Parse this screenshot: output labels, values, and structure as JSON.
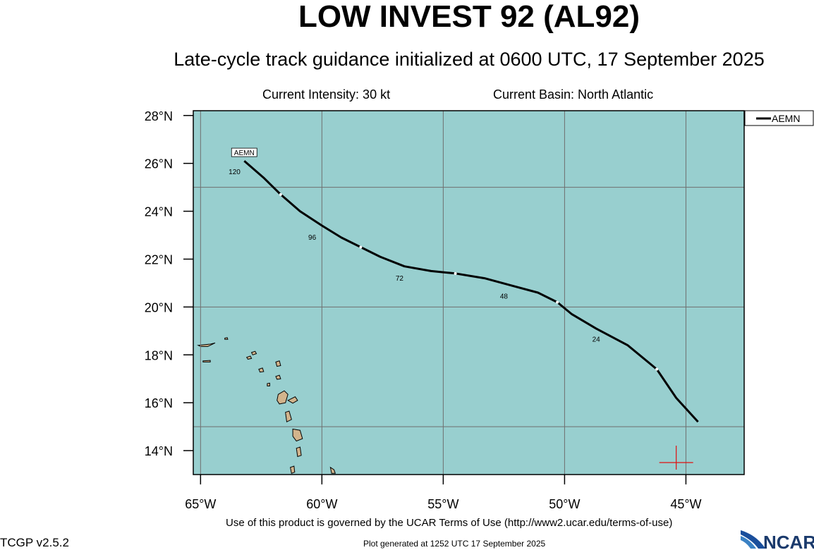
{
  "header": {
    "title": "LOW INVEST 92 (AL92)",
    "subtitle": "Late-cycle track guidance initialized at 0600 UTC, 17 September 2025",
    "intensity": "Current Intensity: 30 kt",
    "basin": "Current Basin: North Atlantic"
  },
  "footer": {
    "terms": "Use of this product is governed by the UCAR Terms of Use (http://www2.ucar.edu/terms-of-use)",
    "generated": "Plot generated at 1252 UTC   17 September 2025",
    "version": "TCGP v2.5.2",
    "logo": "NCAR"
  },
  "map": {
    "lon_range": [
      -65.3,
      -42.6
    ],
    "lat_range": [
      13.0,
      28.2
    ],
    "ocean_color": "#98cfcf",
    "land_color": "#d2b48c",
    "grid_color": "#6f6f6f",
    "track_color": "#000000",
    "lon_ticks": [
      {
        "lon": -65,
        "label": "65°W"
      },
      {
        "lon": -60,
        "label": "60°W"
      },
      {
        "lon": -55,
        "label": "55°W"
      },
      {
        "lon": -50,
        "label": "50°W"
      },
      {
        "lon": -45,
        "label": "45°W"
      }
    ],
    "lat_ticks": [
      {
        "lat": 28,
        "label": "28°N"
      },
      {
        "lat": 26,
        "label": "26°N"
      },
      {
        "lat": 24,
        "label": "24°N"
      },
      {
        "lat": 22,
        "label": "22°N"
      },
      {
        "lat": 20,
        "label": "20°N"
      },
      {
        "lat": 18,
        "label": "18°N"
      },
      {
        "lat": 16,
        "label": "16°N"
      },
      {
        "lat": 14,
        "label": "14°N"
      }
    ],
    "grid_lons": [
      -65,
      -60,
      -55,
      -50,
      -45
    ],
    "grid_lats": [
      25,
      20,
      15
    ],
    "current_position": {
      "lon": -45.4,
      "lat": 13.5
    },
    "tracks": [
      {
        "name": "AEMN",
        "points": [
          {
            "lon": -44.5,
            "lat": 15.2
          },
          {
            "lon": -45.4,
            "lat": 16.2
          },
          {
            "lon": -46.2,
            "lat": 17.4
          },
          {
            "lon": -47.4,
            "lat": 18.4
          },
          {
            "lon": -48.7,
            "lat": 19.1
          },
          {
            "lon": -49.7,
            "lat": 19.7
          },
          {
            "lon": -50.3,
            "lat": 20.2
          },
          {
            "lon": -51.1,
            "lat": 20.6
          },
          {
            "lon": -52.2,
            "lat": 20.9
          },
          {
            "lon": -53.3,
            "lat": 21.2
          },
          {
            "lon": -54.5,
            "lat": 21.4
          },
          {
            "lon": -55.5,
            "lat": 21.5
          },
          {
            "lon": -56.6,
            "lat": 21.7
          },
          {
            "lon": -57.6,
            "lat": 22.1
          },
          {
            "lon": -58.4,
            "lat": 22.5
          },
          {
            "lon": -59.2,
            "lat": 22.9
          },
          {
            "lon": -60.0,
            "lat": 23.4
          },
          {
            "lon": -60.9,
            "lat": 24.0
          },
          {
            "lon": -61.7,
            "lat": 24.7
          },
          {
            "lon": -62.4,
            "lat": 25.4
          },
          {
            "lon": -63.2,
            "lat": 26.1
          }
        ],
        "markers": [
          {
            "lon": -46.2,
            "lat": 17.4
          },
          {
            "lon": -50.3,
            "lat": 20.2
          },
          {
            "lon": -54.5,
            "lat": 21.4
          },
          {
            "lon": -58.4,
            "lat": 22.5
          },
          {
            "lon": -61.7,
            "lat": 24.7
          }
        ],
        "labels": [
          {
            "text": "24",
            "lon": -48.7,
            "lat": 18.85
          },
          {
            "text": "48",
            "lon": -52.5,
            "lat": 20.65
          },
          {
            "text": "72",
            "lon": -56.8,
            "lat": 21.4
          },
          {
            "text": "96",
            "lon": -60.4,
            "lat": 23.1
          },
          {
            "text": "120",
            "lon": -63.6,
            "lat": 25.85
          }
        ],
        "box_label": {
          "text": "AEMN",
          "lon": -63.2,
          "lat": 26.4
        }
      }
    ],
    "legend": {
      "entries": [
        "AEMN"
      ]
    },
    "islands": [
      [
        [
          -65.1,
          18.4
        ],
        [
          -64.6,
          18.45
        ],
        [
          -64.4,
          18.5
        ],
        [
          -64.7,
          18.35
        ],
        [
          -65.0,
          18.35
        ]
      ],
      [
        [
          -64.0,
          18.7
        ],
        [
          -63.9,
          18.72
        ],
        [
          -63.88,
          18.65
        ],
        [
          -64.0,
          18.65
        ]
      ],
      [
        [
          -64.9,
          17.75
        ],
        [
          -64.6,
          17.77
        ],
        [
          -64.6,
          17.7
        ],
        [
          -64.9,
          17.7
        ]
      ],
      [
        [
          -62.9,
          18.1
        ],
        [
          -62.75,
          18.15
        ],
        [
          -62.7,
          18.05
        ],
        [
          -62.85,
          18.0
        ]
      ],
      [
        [
          -63.1,
          17.9
        ],
        [
          -62.95,
          17.95
        ],
        [
          -62.9,
          17.85
        ],
        [
          -63.05,
          17.82
        ]
      ],
      [
        [
          -62.6,
          17.4
        ],
        [
          -62.45,
          17.45
        ],
        [
          -62.4,
          17.3
        ],
        [
          -62.55,
          17.28
        ]
      ],
      [
        [
          -61.9,
          17.7
        ],
        [
          -61.75,
          17.75
        ],
        [
          -61.7,
          17.55
        ],
        [
          -61.85,
          17.52
        ]
      ],
      [
        [
          -61.9,
          17.1
        ],
        [
          -61.75,
          17.15
        ],
        [
          -61.7,
          17.0
        ],
        [
          -61.85,
          16.98
        ]
      ],
      [
        [
          -62.25,
          16.8
        ],
        [
          -62.15,
          16.82
        ],
        [
          -62.15,
          16.7
        ],
        [
          -62.25,
          16.7
        ]
      ],
      [
        [
          -61.8,
          16.35
        ],
        [
          -61.55,
          16.5
        ],
        [
          -61.4,
          16.35
        ],
        [
          -61.5,
          16.0
        ],
        [
          -61.75,
          15.95
        ],
        [
          -61.85,
          16.1
        ]
      ],
      [
        [
          -61.4,
          16.1
        ],
        [
          -61.1,
          16.25
        ],
        [
          -61.0,
          16.1
        ],
        [
          -61.2,
          15.98
        ]
      ],
      [
        [
          -61.5,
          15.6
        ],
        [
          -61.35,
          15.65
        ],
        [
          -61.25,
          15.3
        ],
        [
          -61.45,
          15.2
        ]
      ],
      [
        [
          -61.2,
          14.9
        ],
        [
          -60.9,
          14.85
        ],
        [
          -60.8,
          14.5
        ],
        [
          -61.05,
          14.4
        ],
        [
          -61.2,
          14.6
        ]
      ],
      [
        [
          -61.05,
          14.1
        ],
        [
          -60.9,
          14.15
        ],
        [
          -60.85,
          13.8
        ],
        [
          -61.0,
          13.75
        ]
      ],
      [
        [
          -61.3,
          13.3
        ],
        [
          -61.15,
          13.35
        ],
        [
          -61.12,
          13.1
        ],
        [
          -61.25,
          13.05
        ]
      ],
      [
        [
          -59.65,
          13.3
        ],
        [
          -59.5,
          13.2
        ],
        [
          -59.45,
          13.05
        ],
        [
          -59.6,
          13.05
        ]
      ]
    ]
  }
}
